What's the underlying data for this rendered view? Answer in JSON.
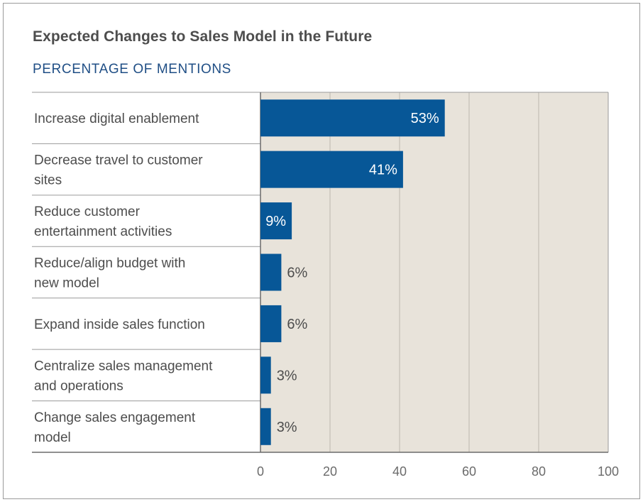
{
  "chart_data": {
    "type": "bar",
    "orientation": "horizontal",
    "title": "Expected Changes to Sales Model in the Future",
    "subtitle": "PERCENTAGE  OF MENTIONS",
    "categories": [
      [
        "Increase digital enablement"
      ],
      [
        "Decrease travel to customer",
        "sites"
      ],
      [
        "Reduce customer",
        "entertainment activities"
      ],
      [
        "Reduce/align budget with",
        "new model"
      ],
      [
        "Expand inside sales function"
      ],
      [
        "Centralize sales management",
        "and operations"
      ],
      [
        "Change sales engagement",
        "model"
      ]
    ],
    "values": [
      53,
      41,
      9,
      6,
      6,
      3,
      3
    ],
    "value_labels": [
      "53%",
      "41%",
      "9%",
      "6%",
      "6%",
      "3%",
      "3%"
    ],
    "xlim": [
      0,
      100
    ],
    "xticks": [
      "0",
      "20",
      "40",
      "60",
      "80",
      "100"
    ],
    "xlabel": "",
    "ylabel": "",
    "grid": true
  },
  "colors": {
    "bar": "#075797",
    "plot_bg": "#e8e3da",
    "grid": "#bdb7ae",
    "label_inside": "#ffffff",
    "label_outside": "#4d4d4d"
  }
}
